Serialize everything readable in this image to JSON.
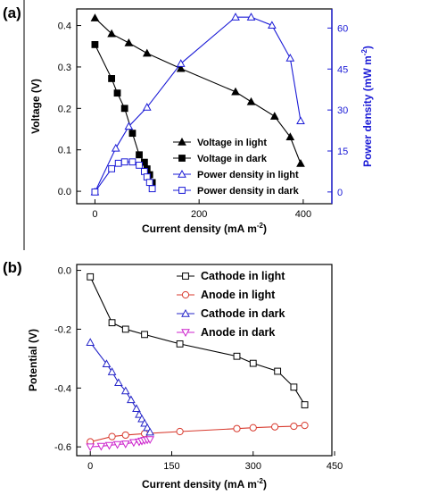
{
  "figure": {
    "panel_a_label": "(a)",
    "panel_b_label": "(b)"
  },
  "chart_data": [
    {
      "type": "line",
      "panel": "(a)",
      "xlabel": "Current density (mA m",
      "xlabel_sup": "-2",
      "xlabel_end": ")",
      "ylabel": "Voltage (V)",
      "y2label": "Power density (mW m",
      "y2label_sup": "-2",
      "y2label_end": ")",
      "xlim": [
        -35,
        455
      ],
      "ylim": [
        -0.03,
        0.44
      ],
      "y2lim": [
        -4.3,
        67
      ],
      "xticks": [
        "0",
        "200",
        "400"
      ],
      "yticks": [
        "0.0",
        "0.1",
        "0.2",
        "0.3",
        "0.4"
      ],
      "y2ticks": [
        "0",
        "15",
        "30",
        "45",
        "60"
      ],
      "legend_position": "lower-right",
      "colors": {
        "black": "#000000",
        "blue": "#1a1ad6"
      },
      "series": [
        {
          "name": "Voltage in light",
          "axis": "left",
          "marker": "triangle-filled",
          "color": "#000000",
          "x": [
            0,
            32,
            65,
            100,
            165,
            270,
            300,
            345,
            375,
            395
          ],
          "y": [
            0.418,
            0.38,
            0.358,
            0.333,
            0.296,
            0.24,
            0.216,
            0.181,
            0.131,
            0.067
          ]
        },
        {
          "name": "Voltage in dark",
          "axis": "left",
          "marker": "square-filled",
          "color": "#000000",
          "x": [
            0,
            32,
            43,
            57,
            72,
            85,
            95,
            100,
            105,
            110
          ],
          "y": [
            0.354,
            0.272,
            0.237,
            0.2,
            0.14,
            0.088,
            0.07,
            0.054,
            0.04,
            0.021
          ]
        },
        {
          "name": "Power density in light",
          "axis": "right",
          "marker": "triangle-open",
          "color": "#1a1ad6",
          "x": [
            0,
            40,
            65,
            100,
            165,
            270,
            300,
            340,
            375,
            395
          ],
          "y": [
            0,
            16,
            24,
            31,
            47,
            64,
            64,
            61,
            49,
            26
          ]
        },
        {
          "name": "Power density in dark",
          "axis": "right",
          "marker": "square-open",
          "color": "#1a1ad6",
          "x": [
            0,
            32,
            45,
            57,
            72,
            85,
            95,
            100,
            105,
            110
          ],
          "y": [
            0,
            8.5,
            10.5,
            11.0,
            11.0,
            9.8,
            7.5,
            5.5,
            3.5,
            1.2
          ]
        }
      ]
    },
    {
      "type": "line",
      "panel": "(b)",
      "xlabel": "Current density (mA m",
      "xlabel_sup": "-2",
      "xlabel_end": ")",
      "ylabel": "Potential (V)",
      "xlim": [
        -25,
        445
      ],
      "ylim": [
        -0.63,
        0.02
      ],
      "xticks": [
        "0",
        "150",
        "300",
        "450"
      ],
      "yticks": [
        "0.0",
        "-0.2",
        "-0.4",
        "-0.6"
      ],
      "legend_position": "top-right",
      "colors": {
        "black": "#000000",
        "red": "#d83a2e",
        "blue": "#2424c8",
        "magenta": "#cc22cc"
      },
      "series": [
        {
          "name": "Cathode in light",
          "marker": "square-open",
          "color": "#000000",
          "x": [
            0,
            40,
            65,
            100,
            165,
            270,
            300,
            345,
            375,
            395
          ],
          "y": [
            -0.022,
            -0.178,
            -0.2,
            -0.218,
            -0.25,
            -0.292,
            -0.316,
            -0.343,
            -0.397,
            -0.457
          ]
        },
        {
          "name": "Anode in light",
          "marker": "circle-open",
          "color": "#d83a2e",
          "x": [
            0,
            40,
            65,
            100,
            165,
            270,
            300,
            340,
            375,
            395
          ],
          "y": [
            -0.583,
            -0.565,
            -0.56,
            -0.555,
            -0.548,
            -0.538,
            -0.535,
            -0.532,
            -0.53,
            -0.527
          ]
        },
        {
          "name": "Cathode in dark",
          "marker": "triangle-open",
          "color": "#2424c8",
          "x": [
            0,
            30,
            40,
            52,
            65,
            75,
            85,
            90,
            95,
            100,
            105,
            110
          ],
          "y": [
            -0.245,
            -0.318,
            -0.345,
            -0.382,
            -0.41,
            -0.44,
            -0.47,
            -0.49,
            -0.505,
            -0.52,
            -0.535,
            -0.55
          ]
        },
        {
          "name": "Anode in dark",
          "marker": "triangle-down-open",
          "color": "#cc22cc",
          "x": [
            0,
            20,
            35,
            50,
            65,
            80,
            90,
            95,
            100,
            105,
            110
          ],
          "y": [
            -0.6,
            -0.598,
            -0.595,
            -0.592,
            -0.59,
            -0.585,
            -0.583,
            -0.58,
            -0.578,
            -0.576,
            -0.575
          ]
        }
      ]
    }
  ]
}
